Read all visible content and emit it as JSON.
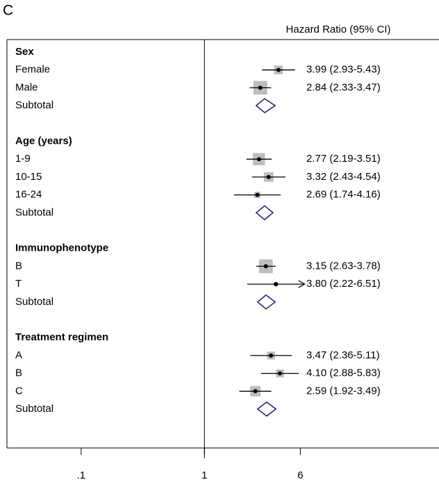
{
  "chart_data": {
    "type": "forest",
    "panel_label": "C",
    "column_header": "Hazard Ratio (95% CI)",
    "xscale": "log",
    "xlim": [
      0.025,
      80
    ],
    "xticks": [
      {
        "value": 0.1,
        "label": ".1"
      },
      1,
      6
    ],
    "reference_line": 1,
    "marker_color": "#000000",
    "weight_color": "#bdbdbd",
    "diamond_color": "#1a1a6e",
    "groups": [
      {
        "name": "Sex",
        "rows": [
          {
            "label": "Female",
            "estimate": 3.99,
            "ci": [
              2.93,
              5.43
            ],
            "weight": 8,
            "value_label": "3.99 (2.93-5.43)"
          },
          {
            "label": "Male",
            "estimate": 2.84,
            "ci": [
              2.33,
              3.47
            ],
            "weight": 14,
            "value_label": "2.84 (2.33-3.47)"
          }
        ],
        "subtotal": {
          "label": "Subtotal",
          "estimate": 3.08,
          "ci": [
            2.63,
            3.75
          ]
        }
      },
      {
        "name": "Age (years)",
        "rows": [
          {
            "label": "1-9",
            "estimate": 2.77,
            "ci": [
              2.19,
              3.51
            ],
            "weight": 12,
            "value_label": "2.77 (2.19-3.51)"
          },
          {
            "label": "10-15",
            "estimate": 3.32,
            "ci": [
              2.43,
              4.54
            ],
            "weight": 9,
            "value_label": "3.32 (2.43-4.54)"
          },
          {
            "label": "16-24",
            "estimate": 2.69,
            "ci": [
              1.74,
              4.16
            ],
            "weight": 5,
            "value_label": "2.69 (1.74-4.16)"
          }
        ],
        "subtotal": {
          "label": "Subtotal",
          "estimate": 3.08,
          "ci": [
            2.63,
            3.6
          ]
        }
      },
      {
        "name": "Immunophenotype",
        "rows": [
          {
            "label": "B",
            "estimate": 3.15,
            "ci": [
              2.63,
              3.78
            ],
            "weight": 14,
            "value_label": "3.15 (2.63-3.78)"
          },
          {
            "label": "T",
            "estimate": 3.8,
            "ci": [
              2.22,
              6.51
            ],
            "weight": 3,
            "value_label": "3.80 (2.22-6.51)",
            "arrow": true
          }
        ],
        "subtotal": {
          "label": "Subtotal",
          "estimate": 3.16,
          "ci": [
            2.7,
            3.75
          ]
        }
      },
      {
        "name": "Treatment regimen",
        "rows": [
          {
            "label": "A",
            "estimate": 3.47,
            "ci": [
              2.36,
              5.11
            ],
            "weight": 7,
            "value_label": "3.47 (2.36-5.11)"
          },
          {
            "label": "B",
            "estimate": 4.1,
            "ci": [
              2.88,
              5.83
            ],
            "weight": 7,
            "value_label": "4.10 (2.88-5.83)"
          },
          {
            "label": "C",
            "estimate": 2.59,
            "ci": [
              1.92,
              3.49
            ],
            "weight": 10,
            "value_label": "2.59 (1.92-3.49)"
          }
        ],
        "subtotal": {
          "label": "Subtotal",
          "estimate": 3.2,
          "ci": [
            2.7,
            3.8
          ]
        }
      }
    ]
  }
}
